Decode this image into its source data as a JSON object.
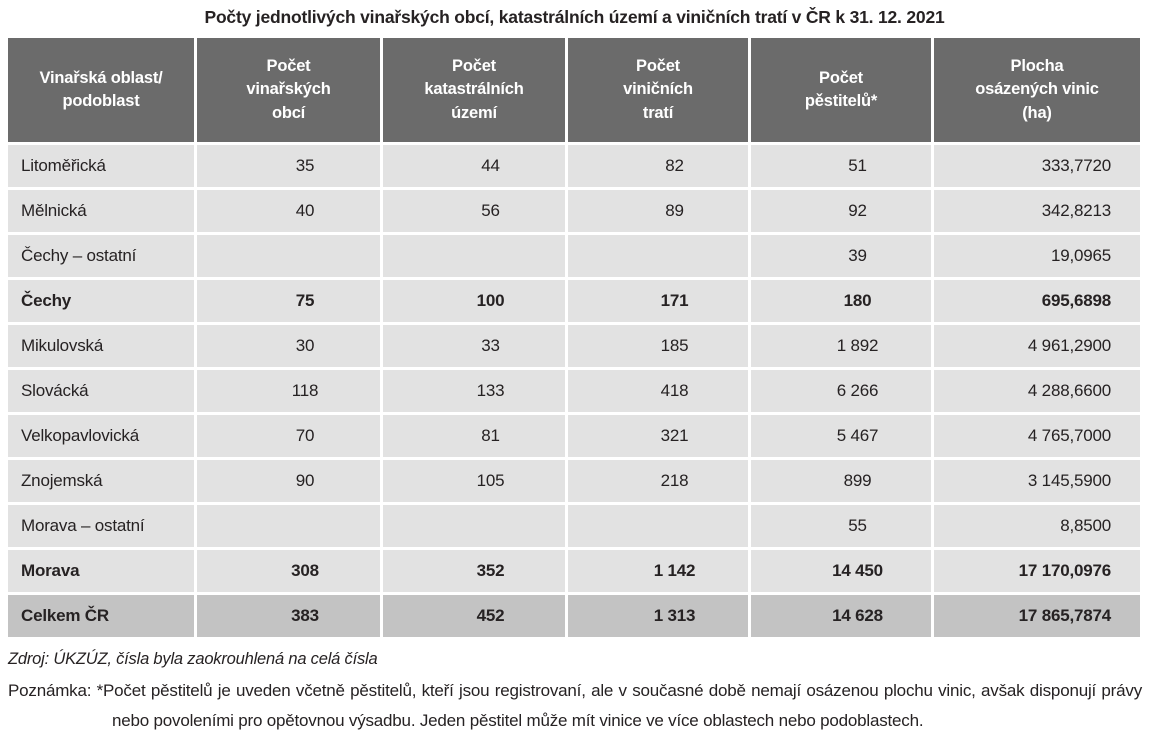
{
  "title": "Počty jednotlivých vinařských obcí, katastrálních území a viničních tratí v ČR k 31. 12. 2021",
  "table": {
    "columns": [
      "Vinařská oblast/\npodoblast",
      "Počet\nvinařských\nobcí",
      "Počet\nkatastrálních\núzemí",
      "Počet\nviničních\ntratí",
      "Počet\npěstitelů*",
      "Plocha\nosázených vinic\n(ha)"
    ],
    "rows": [
      {
        "label": "Litoměřická",
        "style": "normal",
        "values": [
          "35",
          "44",
          "82",
          "51",
          "333,7720"
        ]
      },
      {
        "label": "Mělnická",
        "style": "normal",
        "values": [
          "40",
          "56",
          "89",
          "92",
          "342,8213"
        ]
      },
      {
        "label": "Čechy – ostatní",
        "style": "normal",
        "values": [
          "",
          "",
          "",
          "39",
          "19,0965"
        ]
      },
      {
        "label": "Čechy",
        "style": "subtotal",
        "values": [
          "75",
          "100",
          "171",
          "180",
          "695,6898"
        ]
      },
      {
        "label": "Mikulovská",
        "style": "normal",
        "values": [
          "30",
          "33",
          "185",
          "1 892",
          "4 961,2900"
        ]
      },
      {
        "label": "Slovácká",
        "style": "normal",
        "values": [
          "118",
          "133",
          "418",
          "6 266",
          "4 288,6600"
        ]
      },
      {
        "label": "Velkopavlovická",
        "style": "normal",
        "values": [
          "70",
          "81",
          "321",
          "5 467",
          "4 765,7000"
        ]
      },
      {
        "label": "Znojemská",
        "style": "normal",
        "values": [
          "90",
          "105",
          "218",
          "899",
          "3 145,5900"
        ]
      },
      {
        "label": "Morava – ostatní",
        "style": "normal",
        "values": [
          "",
          "",
          "",
          "55",
          "8,8500"
        ]
      },
      {
        "label": "Morava",
        "style": "subtotal",
        "values": [
          "308",
          "352",
          "1 142",
          "14 450",
          "17 170,0976"
        ]
      },
      {
        "label": "Celkem ČR",
        "style": "total",
        "values": [
          "383",
          "452",
          "1 313",
          "14 628",
          "17 865,7874"
        ]
      }
    ]
  },
  "footer": {
    "source": "Zdroj: ÚKZÚZ, čísla byla zaokrouhlená na celá čísla",
    "note_label": "Poznámka:",
    "note_text": " *Počet pěstitelů je uveden včetně pěstitelů, kteří jsou registrovaní, ale v současné době nemají osázenou plochu vinic, avšak disponují právy nebo povoleními pro opětovnou výsadbu. Jeden pěstitel může mít vinice ve více oblastech nebo podoblastech."
  },
  "colors": {
    "header_bg": "#6b6b6b",
    "header_text": "#ffffff",
    "row_bg": "#e2e2e2",
    "total_row_bg": "#c3c3c3",
    "body_text": "#262223",
    "page_bg": "#ffffff"
  }
}
